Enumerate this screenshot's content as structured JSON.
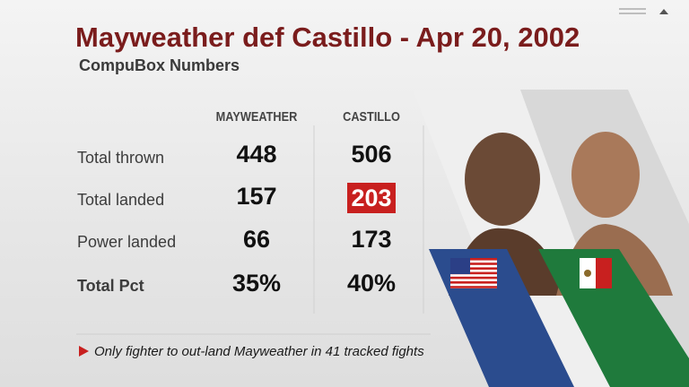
{
  "header": {
    "title": "Mayweather def Castillo - Apr 20, 2002",
    "subtitle": "CompuBox Numbers"
  },
  "table": {
    "columns": [
      "MAYWEATHER",
      "CASTILLO"
    ],
    "rows": [
      {
        "label": "Total thrown",
        "values": [
          "448",
          "506"
        ]
      },
      {
        "label": "Total landed",
        "values": [
          "157",
          "203"
        ]
      },
      {
        "label": "Power landed",
        "values": [
          "66",
          "173"
        ]
      },
      {
        "label": "Total Pct",
        "values": [
          "35%",
          "40%"
        ]
      }
    ]
  },
  "footnote": "Only fighter to out-land Mayweather in 41 tracked fights"
}
